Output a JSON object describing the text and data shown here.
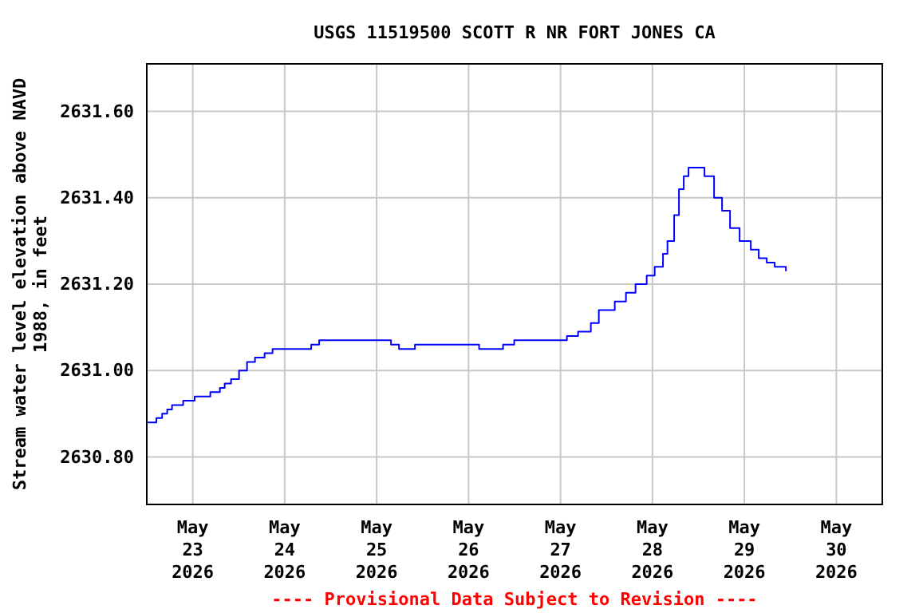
{
  "chart_data": {
    "type": "step",
    "title": "USGS 11519500 SCOTT R NR FORT JONES CA",
    "ylabel": "Stream water level elevation above NAVD 1988, in feet",
    "annotations": [
      "---- Provisional Data Subject to Revision ----"
    ],
    "xlim": [
      "2026-05-22T12:00",
      "2026-05-30T12:00"
    ],
    "xticks": [
      {
        "value": "2026-05-23",
        "label": "May\n23\n2026"
      },
      {
        "value": "2026-05-24",
        "label": "May\n24\n2026"
      },
      {
        "value": "2026-05-25",
        "label": "May\n25\n2026"
      },
      {
        "value": "2026-05-26",
        "label": "May\n26\n2026"
      },
      {
        "value": "2026-05-27",
        "label": "May\n27\n2026"
      },
      {
        "value": "2026-05-28",
        "label": "May\n28\n2026"
      },
      {
        "value": "2026-05-29",
        "label": "May\n29\n2026"
      },
      {
        "value": "2026-05-30",
        "label": "May\n30\n2026"
      }
    ],
    "ylim": [
      2630.69,
      2631.71
    ],
    "yticks": [
      {
        "value": 2630.8,
        "label": "2630.80"
      },
      {
        "value": 2631.0,
        "label": "2631.00"
      },
      {
        "value": 2631.2,
        "label": "2631.20"
      },
      {
        "value": 2631.4,
        "label": "2631.40"
      },
      {
        "value": 2631.6,
        "label": "2631.60"
      }
    ],
    "grid": true,
    "series": [
      {
        "color": "#0000ff",
        "x": [
          "2026-05-22T12:15",
          "2026-05-22T14:00",
          "2026-05-22T14:30",
          "2026-05-22T16:00",
          "2026-05-22T17:20",
          "2026-05-22T18:35",
          "2026-05-22T21:30",
          "2026-05-23T00:30",
          "2026-05-23T03:45",
          "2026-05-23T04:35",
          "2026-05-23T07:05",
          "2026-05-23T08:20",
          "2026-05-23T10:00",
          "2026-05-23T12:05",
          "2026-05-23T14:10",
          "2026-05-23T16:15",
          "2026-05-23T18:45",
          "2026-05-23T20:50",
          "2026-05-24T00:35",
          "2026-05-24T04:50",
          "2026-05-24T06:55",
          "2026-05-24T09:00",
          "2026-05-24T19:25",
          "2026-05-25T03:45",
          "2026-05-25T05:50",
          "2026-05-25T07:55",
          "2026-05-25T10:00",
          "2026-05-26T02:45",
          "2026-05-26T09:00",
          "2026-05-26T11:55",
          "2026-05-26T23:35",
          "2026-05-27T01:40",
          "2026-05-27T04:35",
          "2026-05-27T07:55",
          "2026-05-27T10:00",
          "2026-05-27T14:10",
          "2026-05-27T17:05",
          "2026-05-27T19:35",
          "2026-05-27T22:30",
          "2026-05-28T00:35",
          "2026-05-28T02:45",
          "2026-05-28T03:55",
          "2026-05-28T05:40",
          "2026-05-28T06:55",
          "2026-05-28T08:10",
          "2026-05-28T09:25",
          "2026-05-28T11:55",
          "2026-05-28T13:35",
          "2026-05-28T16:05",
          "2026-05-28T18:10",
          "2026-05-28T20:15",
          "2026-05-28T22:45",
          "2026-05-29T01:40",
          "2026-05-29T03:45",
          "2026-05-29T05:50",
          "2026-05-29T07:55",
          "2026-05-29T10:50"
        ],
        "values": [
          2630.88,
          2630.88,
          2630.89,
          2630.9,
          2630.91,
          2630.92,
          2630.93,
          2630.94,
          2630.94,
          2630.95,
          2630.96,
          2630.97,
          2630.98,
          2631.0,
          2631.02,
          2631.03,
          2631.04,
          2631.05,
          2631.05,
          2631.05,
          2631.06,
          2631.07,
          2631.07,
          2631.06,
          2631.05,
          2631.05,
          2631.06,
          2631.05,
          2631.06,
          2631.07,
          2631.07,
          2631.08,
          2631.09,
          2631.11,
          2631.14,
          2631.16,
          2631.18,
          2631.2,
          2631.22,
          2631.24,
          2631.27,
          2631.3,
          2631.36,
          2631.42,
          2631.45,
          2631.47,
          2631.47,
          2631.45,
          2631.4,
          2631.37,
          2631.33,
          2631.3,
          2631.28,
          2631.26,
          2631.25,
          2631.24,
          2631.23
        ]
      }
    ]
  }
}
